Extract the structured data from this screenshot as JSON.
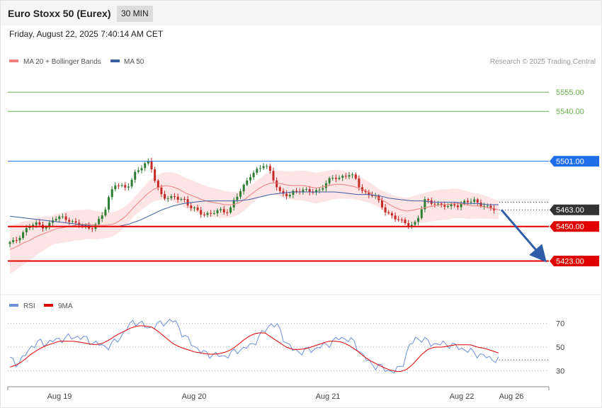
{
  "header": {
    "title": "Euro Stoxx 50 (Eurex)",
    "timeframe": "30 MIN"
  },
  "datetime": "Friday, August 22, 2025 7:40:14 AM CET",
  "legend": {
    "ma20": "MA 20 + Bollinger Bands",
    "ma50": "MA 50"
  },
  "copyright": "Research © 2025 Trading Central",
  "colors": {
    "ma20": "#f08080",
    "ma50": "#3a5fa5",
    "up": "#2e7d32",
    "down": "#c62828",
    "resistance_blue": "#1f6fe8",
    "support_red": "#e00000",
    "target_green": "#6ab04c",
    "band_fill": "#fde0e0",
    "rsi": "#6f8fd8",
    "rsi_ma": "#e00000"
  },
  "chart_data": [
    {
      "type": "candlestick",
      "title": "",
      "y_range": [
        5400,
        5575
      ],
      "x_tick_labels": [
        "Aug 19",
        "Aug 20",
        "Aug 21",
        "Aug 22",
        "Aug 26"
      ],
      "levels": [
        {
          "value": 5555.0,
          "label": "5555.00",
          "style": "target"
        },
        {
          "value": 5540.0,
          "label": "5540.00",
          "style": "target"
        },
        {
          "value": 5501.0,
          "label": "5501.00",
          "style": "resistance"
        },
        {
          "value": 5463.0,
          "label": "5463.00",
          "style": "current"
        },
        {
          "value": 5450.0,
          "label": "5450.00",
          "style": "support"
        },
        {
          "value": 5423.0,
          "label": "5423.00",
          "style": "support"
        }
      ],
      "price_path": [
        5437,
        5438,
        5443,
        5447,
        5450,
        5452,
        5451,
        5450,
        5452,
        5456,
        5457,
        5457,
        5455,
        5452,
        5451,
        5450,
        5449,
        5451,
        5455,
        5462,
        5475,
        5484,
        5482,
        5479,
        5483,
        5492,
        5496,
        5498,
        5500,
        5487,
        5477,
        5473,
        5471,
        5473,
        5472,
        5471,
        5465,
        5463,
        5461,
        5460,
        5460,
        5461,
        5462,
        5462,
        5463,
        5471,
        5476,
        5482,
        5490,
        5493,
        5495,
        5498,
        5494,
        5486,
        5477,
        5474,
        5474,
        5478,
        5479,
        5478,
        5477,
        5477,
        5479,
        5483,
        5486,
        5488,
        5488,
        5490,
        5491,
        5488,
        5481,
        5477,
        5475,
        5475,
        5468,
        5463,
        5460,
        5457,
        5455,
        5452,
        5452,
        5452,
        5458,
        5470,
        5469,
        5469,
        5467,
        5466,
        5465,
        5467,
        5467,
        5469,
        5469,
        5470,
        5468,
        5467,
        5464,
        5463
      ],
      "ma20_path": [
        5432,
        5434,
        5437,
        5439,
        5442,
        5444,
        5446,
        5448,
        5449,
        5450,
        5451,
        5451,
        5452,
        5451,
        5451,
        5451,
        5452,
        5455,
        5459,
        5465,
        5470,
        5475,
        5479,
        5481,
        5482,
        5481,
        5479,
        5476,
        5474,
        5472,
        5470,
        5469,
        5468,
        5467,
        5467,
        5468,
        5471,
        5475,
        5479,
        5482,
        5484,
        5484,
        5483,
        5482,
        5482,
        5482,
        5481,
        5480,
        5481,
        5482,
        5483,
        5483,
        5482,
        5481,
        5479,
        5477,
        5474,
        5471,
        5468,
        5465,
        5463,
        5462,
        5463,
        5464,
        5465,
        5466,
        5467,
        5467,
        5468,
        5468,
        5467,
        5466,
        5466,
        5465,
        5464,
        5463
      ],
      "ma50_path": [
        5458,
        5457,
        5456,
        5455,
        5454,
        5453,
        5452,
        5451,
        5450,
        5450,
        5450,
        5452,
        5455,
        5459,
        5463,
        5466,
        5468,
        5469,
        5470,
        5470,
        5470,
        5470,
        5471,
        5473,
        5475,
        5476,
        5477,
        5477,
        5477,
        5477,
        5477,
        5476,
        5475,
        5475,
        5474,
        5472,
        5471,
        5470,
        5470,
        5469,
        5469,
        5469,
        5468,
        5468,
        5467,
        5467
      ],
      "projection": {
        "from": 5463,
        "to": 5423
      }
    },
    {
      "type": "line",
      "title": "",
      "series_names": [
        "RSI",
        "9MA"
      ],
      "y_range": [
        20,
        80
      ],
      "y_tick_labels": [
        "70",
        "50",
        "30"
      ],
      "rsi_path": [
        40,
        36,
        41,
        50,
        54,
        53,
        55,
        56,
        58,
        58,
        59,
        57,
        54,
        52,
        50,
        53,
        58,
        66,
        72,
        70,
        66,
        68,
        70,
        72,
        72,
        62,
        55,
        50,
        45,
        44,
        43,
        42,
        44,
        47,
        49,
        51,
        57,
        64,
        70,
        67,
        55,
        48,
        46,
        47,
        48,
        50,
        52,
        55,
        58,
        57,
        54,
        45,
        38,
        34,
        33,
        30,
        29,
        35,
        50,
        58,
        56,
        54,
        52,
        53,
        52,
        50,
        48,
        46,
        44,
        42,
        40,
        39
      ],
      "rsi_ma_path": [
        33,
        35,
        39,
        44,
        48,
        51,
        53,
        55,
        55,
        55,
        54,
        53,
        52,
        53,
        56,
        60,
        63,
        66,
        68,
        68,
        67,
        63,
        58,
        53,
        50,
        48,
        46,
        45,
        44,
        44,
        45,
        47,
        51,
        56,
        60,
        62,
        62,
        58,
        54,
        50,
        48,
        48,
        49,
        51,
        53,
        55,
        55,
        54,
        51,
        47,
        42,
        38,
        35,
        32,
        30,
        29,
        31,
        36,
        43,
        48,
        50,
        50,
        51,
        52,
        52,
        52,
        50,
        49,
        47,
        45
      ]
    }
  ]
}
